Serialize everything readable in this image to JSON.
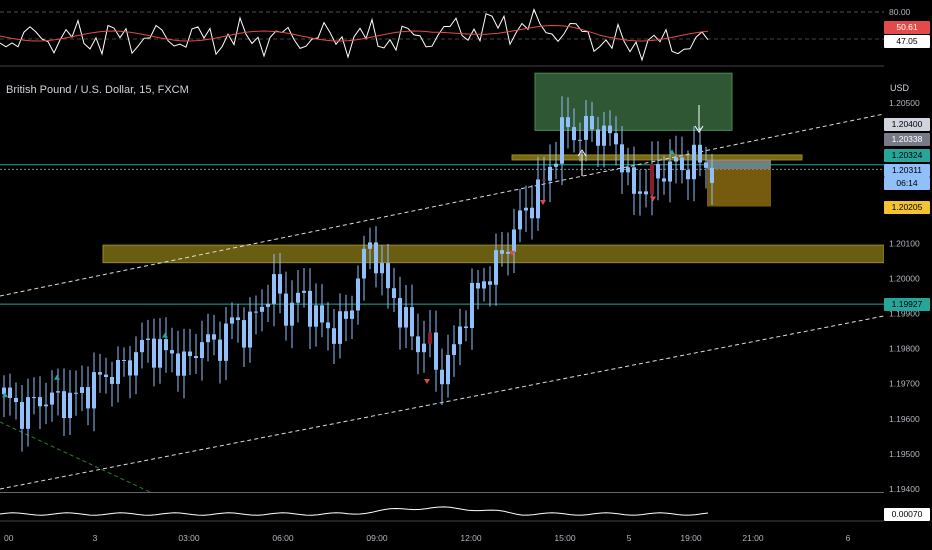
{
  "chart": {
    "symbol_title": "British Pound / U.S. Dollar, 15, FXCM",
    "currency_label": "USD",
    "colors": {
      "background": "#000000",
      "bull_candle": "#90bff9",
      "bear_candle": "#8a1d2c",
      "rsi_line": "#ffffff",
      "rsi_ma": "#e34b4b",
      "zone_yellow": "#8d7d19",
      "zone_green": "#2f5734",
      "hline_teal": "#26a69a",
      "signal_up": "#26a69a",
      "signal_down": "#e84545"
    },
    "price_axis": {
      "ticks": [
        "1.20500",
        "1.20100",
        "1.20000",
        "1.19900",
        "1.19800",
        "1.19700",
        "1.19600",
        "1.19500",
        "1.19400"
      ],
      "range": [
        1.1938,
        1.2062
      ]
    },
    "price_tags": [
      {
        "id": "p1",
        "text": "1.20400",
        "bg": "#d1d4dc",
        "fg": "#000000",
        "price": 1.204
      },
      {
        "id": "p2",
        "text": "1.20338",
        "bg": "#787b86",
        "fg": "#ffffff",
        "price": 1.20338
      },
      {
        "id": "p3",
        "text": "1.20324",
        "bg": "#26a69a",
        "fg": "#000000",
        "price": 1.20324
      },
      {
        "id": "p4",
        "text": "1.20311",
        "bg": "#90bff9",
        "fg": "#000000",
        "price": 1.20311
      },
      {
        "id": "p5",
        "text": "06:14",
        "bg": "#90bff9",
        "fg": "#000000",
        "price": 1.20292
      },
      {
        "id": "p6",
        "text": "1.20205",
        "bg": "#f4c430",
        "fg": "#000000",
        "price": 1.20205
      },
      {
        "id": "p7",
        "text": "1.19927",
        "bg": "#26a69a",
        "fg": "#000000",
        "price": 1.19927
      }
    ],
    "rsi_panel": {
      "levels": [
        "80.00"
      ],
      "tags": [
        {
          "text": "50.61",
          "bg": "#e34b4b",
          "fg": "#ffffff"
        },
        {
          "text": "47.05",
          "bg": "#ffffff",
          "fg": "#000000"
        }
      ]
    },
    "bottom_panel": {
      "tag": {
        "text": "0.00070",
        "bg": "#ffffff",
        "fg": "#000000"
      }
    },
    "time_axis": [
      "00",
      "3",
      "03:00",
      "06:00",
      "09:00",
      "12:00",
      "15:00",
      "5",
      "19:00",
      "21:00",
      "6"
    ]
  }
}
